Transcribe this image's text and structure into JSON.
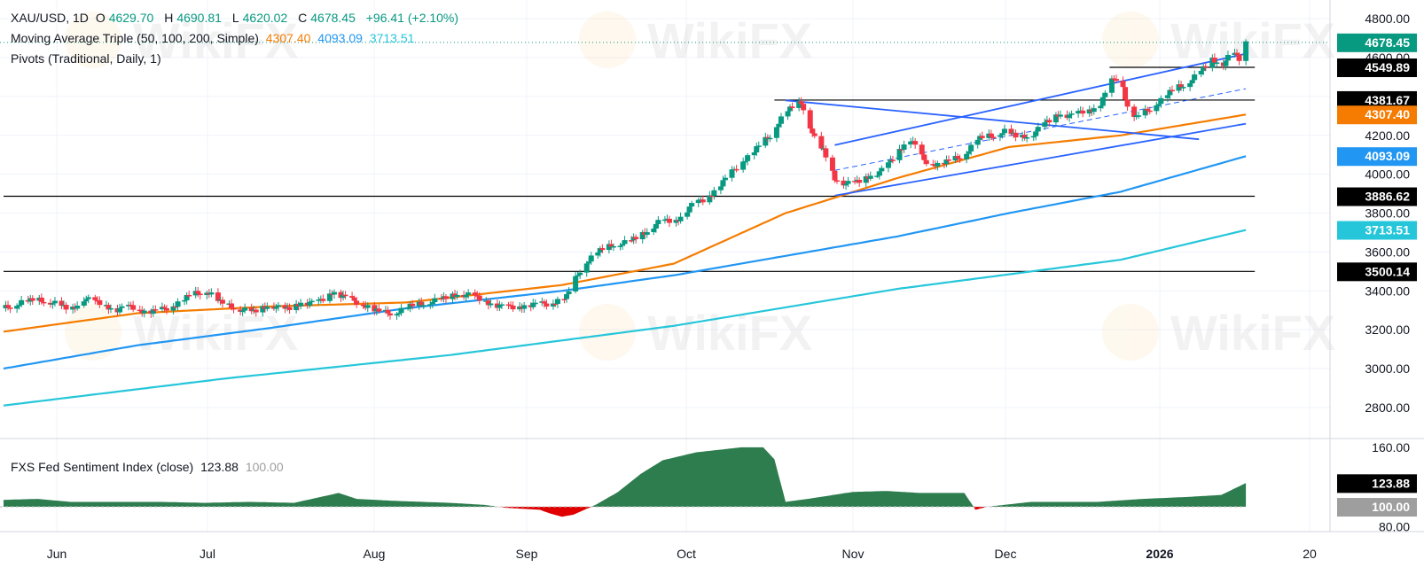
{
  "header": {
    "symbol": "XAU/USD, 1D",
    "open_label": "O",
    "open": "4629.70",
    "high_label": "H",
    "high": "4690.81",
    "low_label": "L",
    "low": "4620.02",
    "close_label": "C",
    "close": "4678.45",
    "change": "+96.41 (+2.10%)",
    "ma_title": "Moving Average Triple (50, 100, 200, Simple)",
    "ma50": "4307.40",
    "ma100": "4093.09",
    "ma200": "3713.51",
    "pivots_title": "Pivots (Traditional, Daily, 1)"
  },
  "sub_header": {
    "title": "FXS Fed Sentiment Index (close)",
    "value": "123.88",
    "baseline": "100.00"
  },
  "watermark": "WikiFX",
  "colors": {
    "up": "#089981",
    "down": "#f23645",
    "ma50": "#f57c00",
    "ma100": "#2196f3",
    "ma200": "#26c6da",
    "channel": "#2962ff",
    "fill_up": "#2e7d4f",
    "fill_down": "#e00000"
  },
  "chart_data": [
    {
      "type": "candlestick",
      "title": "XAU/USD, 1D",
      "x_ticks": [
        "Jun",
        "Jul",
        "Aug",
        "Sep",
        "Oct",
        "Nov",
        "Dec",
        "2026",
        "20"
      ],
      "ylim": [
        2640,
        4860
      ],
      "y_ticks": [
        "4800.00",
        "4600.00",
        "4400.00",
        "4200.00",
        "4000.00",
        "3800.00",
        "3600.00",
        "3400.00",
        "3200.00",
        "3000.00",
        "2800.00"
      ],
      "price_labels": [
        {
          "value": "4678.45",
          "series": "last"
        },
        {
          "value": "4549.89",
          "series": "pivot"
        },
        {
          "value": "4381.67",
          "series": "pivot"
        },
        {
          "value": "4307.40",
          "series": "ma50"
        },
        {
          "value": "4093.09",
          "series": "ma100"
        },
        {
          "value": "3886.62",
          "series": "pivot"
        },
        {
          "value": "3713.51",
          "series": "ma200"
        },
        {
          "value": "3500.14",
          "series": "pivot"
        }
      ],
      "close_path": [
        [
          0,
          3310
        ],
        [
          8,
          3340
        ],
        [
          15,
          3355
        ],
        [
          22,
          3340
        ],
        [
          30,
          3300
        ],
        [
          36,
          3360
        ],
        [
          44,
          3335
        ],
        [
          50,
          3300
        ],
        [
          57,
          3320
        ],
        [
          64,
          3290
        ],
        [
          70,
          3300
        ],
        [
          77,
          3330
        ],
        [
          84,
          3380
        ],
        [
          91,
          3400
        ],
        [
          97,
          3340
        ],
        [
          104,
          3310
        ],
        [
          112,
          3290
        ],
        [
          119,
          3330
        ],
        [
          126,
          3300
        ],
        [
          133,
          3340
        ],
        [
          140,
          3335
        ],
        [
          147,
          3395
        ],
        [
          154,
          3360
        ],
        [
          161,
          3330
        ],
        [
          168,
          3290
        ],
        [
          175,
          3285
        ],
        [
          182,
          3320
        ],
        [
          189,
          3340
        ],
        [
          196,
          3355
        ],
        [
          203,
          3385
        ],
        [
          210,
          3375
        ],
        [
          217,
          3340
        ],
        [
          224,
          3315
        ],
        [
          231,
          3320
        ],
        [
          238,
          3330
        ],
        [
          245,
          3335
        ],
        [
          252,
          3370
        ],
        [
          259,
          3530
        ],
        [
          266,
          3600
        ],
        [
          273,
          3640
        ],
        [
          280,
          3650
        ],
        [
          287,
          3700
        ],
        [
          294,
          3760
        ],
        [
          301,
          3760
        ],
        [
          308,
          3840
        ],
        [
          315,
          3880
        ],
        [
          322,
          3960
        ],
        [
          329,
          4050
        ],
        [
          336,
          4120
        ],
        [
          343,
          4200
        ],
        [
          350,
          4320
        ],
        [
          357,
          4370
        ],
        [
          360,
          4280
        ],
        [
          364,
          4150
        ],
        [
          367,
          4120
        ],
        [
          372,
          3980
        ],
        [
          377,
          3950
        ],
        [
          382,
          3960
        ],
        [
          387,
          3990
        ],
        [
          392,
          4010
        ],
        [
          396,
          4050
        ],
        [
          400,
          4120
        ],
        [
          406,
          4180
        ],
        [
          412,
          4070
        ],
        [
          418,
          4050
        ],
        [
          424,
          4070
        ],
        [
          430,
          4100
        ],
        [
          436,
          4180
        ],
        [
          442,
          4200
        ],
        [
          448,
          4220
        ],
        [
          454,
          4190
        ],
        [
          460,
          4200
        ],
        [
          466,
          4260
        ],
        [
          472,
          4310
        ],
        [
          478,
          4300
        ],
        [
          484,
          4330
        ],
        [
          490,
          4340
        ],
        [
          496,
          4480
        ],
        [
          500,
          4510
        ],
        [
          503,
          4340
        ],
        [
          507,
          4290
        ],
        [
          512,
          4330
        ],
        [
          518,
          4380
        ],
        [
          524,
          4440
        ],
        [
          530,
          4470
        ],
        [
          536,
          4530
        ],
        [
          541,
          4590
        ],
        [
          546,
          4570
        ],
        [
          550,
          4630
        ],
        [
          554,
          4580
        ],
        [
          556,
          4678
        ]
      ],
      "series": [
        {
          "name": "50",
          "values": [
            [
              0,
              3190
            ],
            [
              60,
              3285
            ],
            [
              120,
              3320
            ],
            [
              180,
              3340
            ],
            [
              250,
              3430
            ],
            [
              300,
              3540
            ],
            [
              350,
              3800
            ],
            [
              400,
              3980
            ],
            [
              450,
              4140
            ],
            [
              500,
              4200
            ],
            [
              556,
              4307
            ]
          ]
        },
        {
          "name": "100",
          "values": [
            [
              0,
              3000
            ],
            [
              60,
              3120
            ],
            [
              120,
              3210
            ],
            [
              180,
              3310
            ],
            [
              250,
              3400
            ],
            [
              300,
              3480
            ],
            [
              350,
              3580
            ],
            [
              400,
              3680
            ],
            [
              450,
              3800
            ],
            [
              500,
              3910
            ],
            [
              556,
              4093
            ]
          ]
        },
        {
          "name": "200",
          "values": [
            [
              0,
              2810
            ],
            [
              100,
              2950
            ],
            [
              200,
              3070
            ],
            [
              300,
              3220
            ],
            [
              400,
              3410
            ],
            [
              500,
              3560
            ],
            [
              556,
              3713
            ]
          ]
        }
      ],
      "pivots": [
        {
          "value": 4549.89,
          "from": 495
        },
        {
          "value": 4381.67,
          "from": 345
        },
        {
          "value": 3886.62,
          "from": 0
        },
        {
          "value": 3500.14,
          "from": 0
        }
      ],
      "channel": {
        "upper": [
          [
            372,
            4150
          ],
          [
            556,
            4620
          ]
        ],
        "lower": [
          [
            372,
            3890
          ],
          [
            556,
            4260
          ]
        ],
        "mid": [
          [
            372,
            4020
          ],
          [
            556,
            4440
          ]
        ],
        "resistance": [
          [
            350,
            4380
          ],
          [
            535,
            4180
          ]
        ]
      }
    },
    {
      "type": "area",
      "title": "FXS Fed Sentiment Index (close)",
      "baseline": 100,
      "ylim": [
        75,
        168
      ],
      "y_ticks": [
        "160.00",
        "80.00"
      ],
      "values": [
        [
          0,
          107
        ],
        [
          15,
          108
        ],
        [
          30,
          105
        ],
        [
          50,
          105
        ],
        [
          70,
          105
        ],
        [
          90,
          104
        ],
        [
          110,
          105
        ],
        [
          130,
          104
        ],
        [
          150,
          114
        ],
        [
          158,
          108
        ],
        [
          175,
          106
        ],
        [
          200,
          104
        ],
        [
          215,
          102
        ],
        [
          225,
          99
        ],
        [
          240,
          97
        ],
        [
          245,
          93
        ],
        [
          250,
          90
        ],
        [
          255,
          92
        ],
        [
          265,
          102
        ],
        [
          275,
          115
        ],
        [
          285,
          133
        ],
        [
          295,
          147
        ],
        [
          310,
          155
        ],
        [
          330,
          160
        ],
        [
          340,
          160
        ],
        [
          345,
          148
        ],
        [
          350,
          105
        ],
        [
          360,
          108
        ],
        [
          380,
          115
        ],
        [
          395,
          116
        ],
        [
          410,
          114
        ],
        [
          420,
          114
        ],
        [
          430,
          114
        ],
        [
          435,
          97
        ],
        [
          440,
          100
        ],
        [
          460,
          105
        ],
        [
          490,
          105
        ],
        [
          510,
          108
        ],
        [
          530,
          110
        ],
        [
          545,
          112
        ],
        [
          556,
          124
        ]
      ]
    }
  ]
}
